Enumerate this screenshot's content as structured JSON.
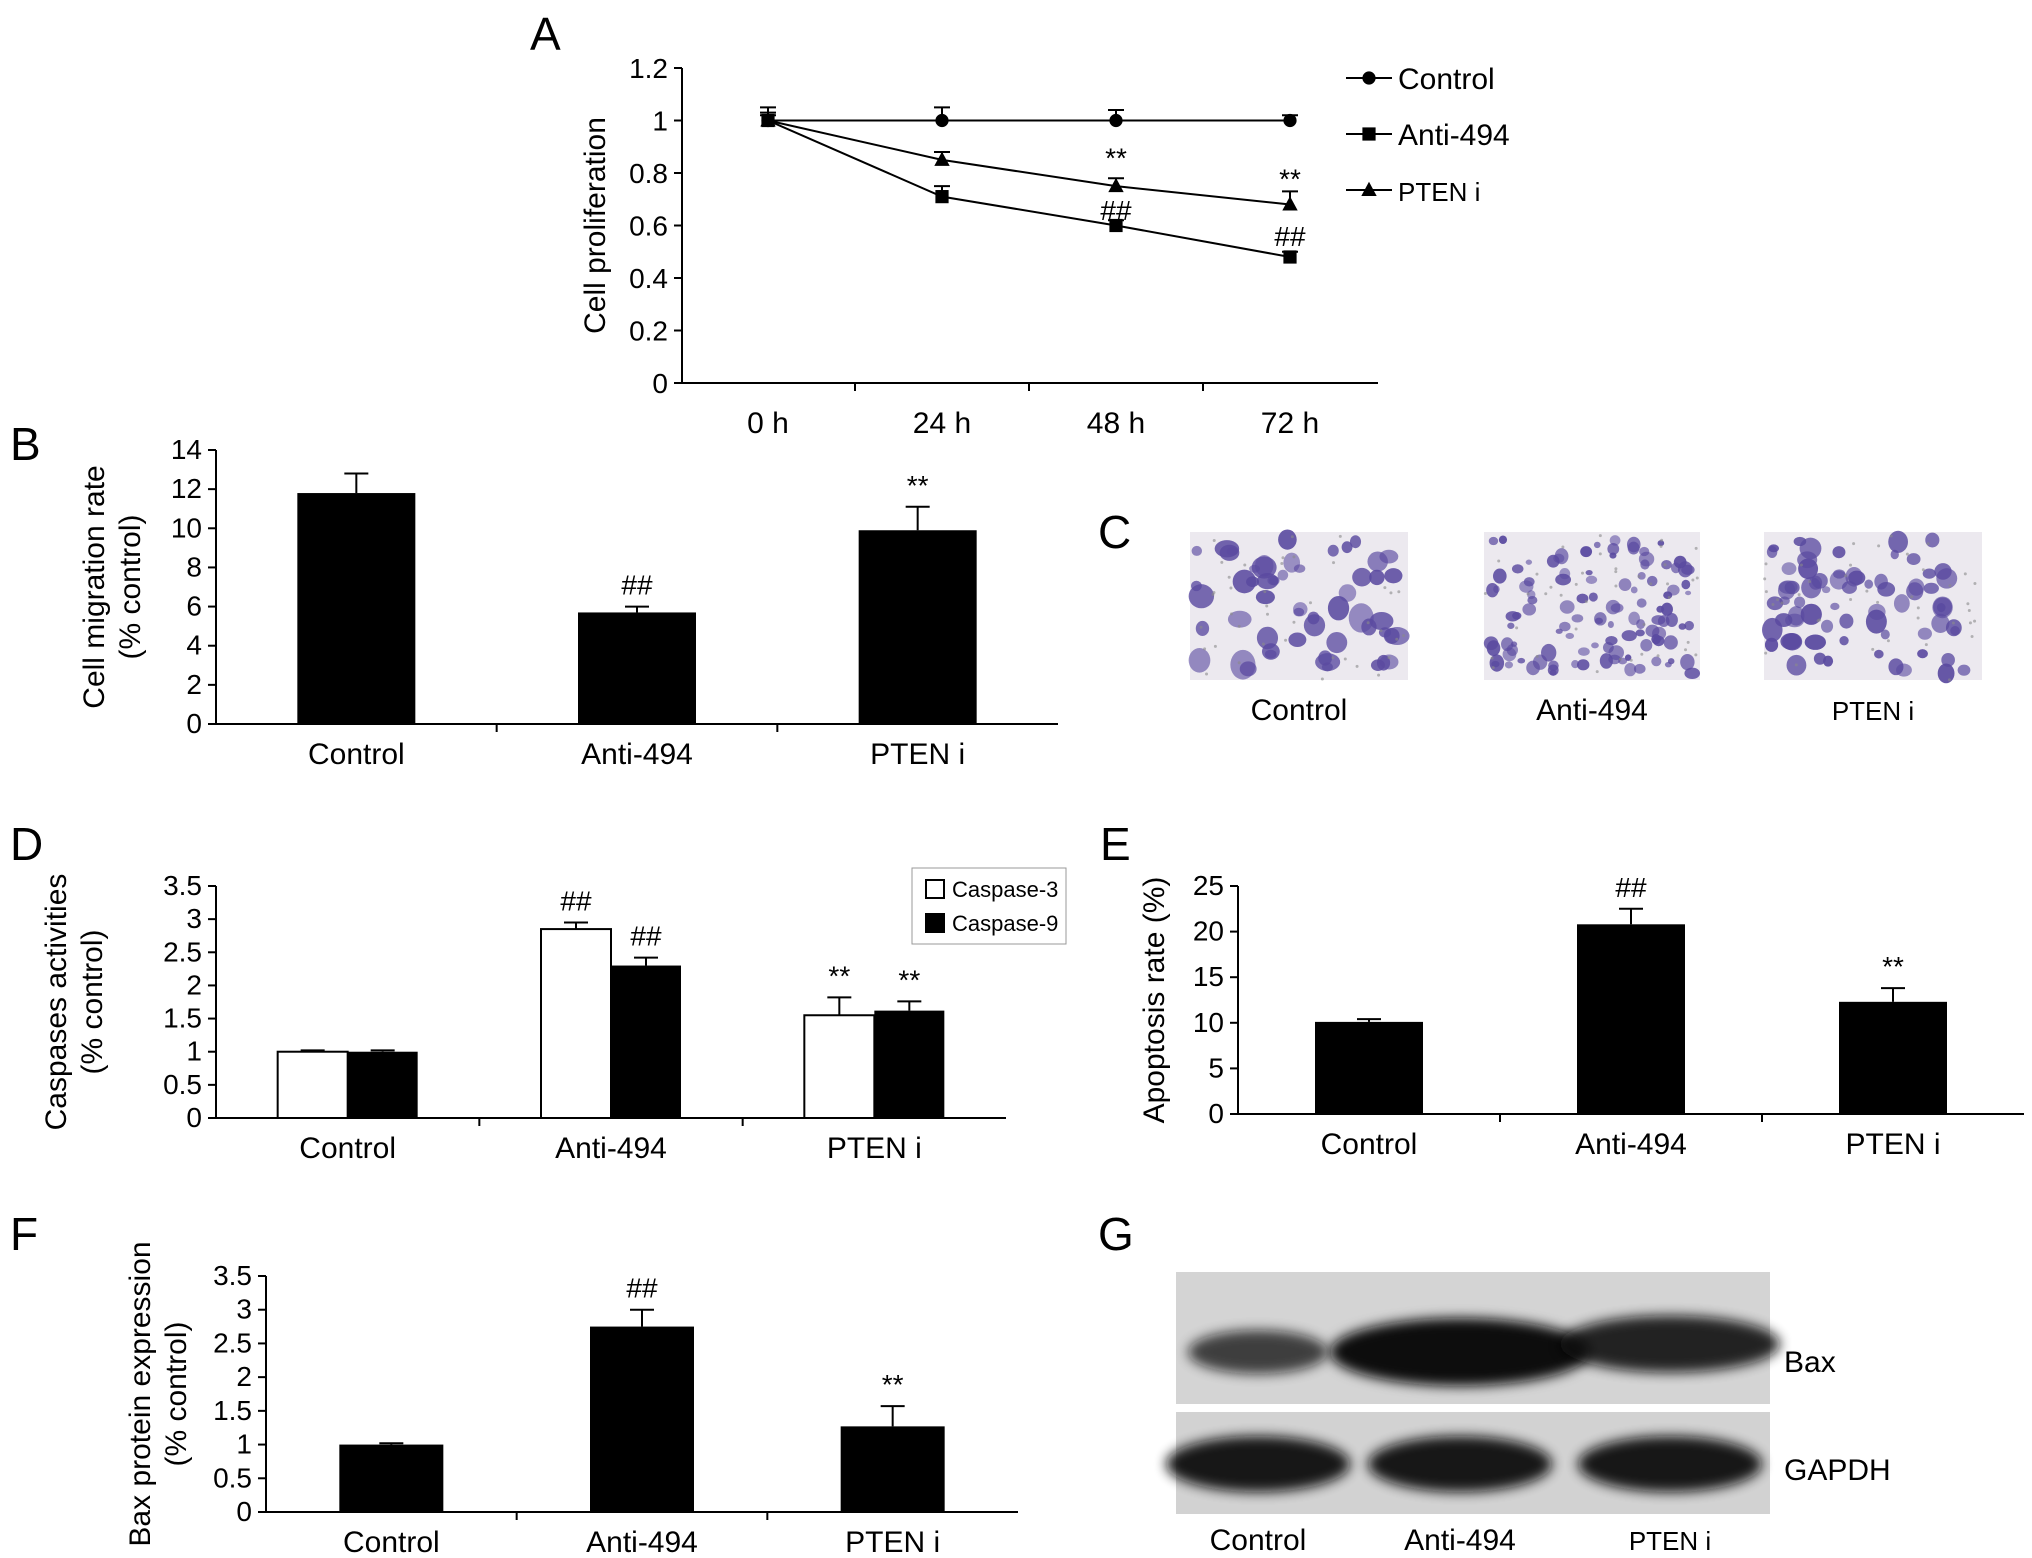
{
  "panel_letters": {
    "A": "A",
    "B": "B",
    "C": "C",
    "D": "D",
    "E": "E",
    "F": "F",
    "G": "G"
  },
  "chart_data": [
    {
      "panel": "A",
      "type": "line",
      "categories": [
        "0 h",
        "24 h",
        "48 h",
        "72 h"
      ],
      "ylabel": "Cell proliferation",
      "ylim": [
        0,
        1.2
      ],
      "yticks": [
        "0",
        "0.2",
        "0.4",
        "0.6",
        "0.8",
        "1",
        "1.2"
      ],
      "legend_position": "right",
      "series": [
        {
          "name": "Control",
          "marker": "circle",
          "values": [
            1.0,
            1.0,
            1.0,
            1.0
          ],
          "errors": [
            0.05,
            0.05,
            0.04,
            0.02
          ]
        },
        {
          "name": "Anti-494",
          "marker": "square",
          "values": [
            1.0,
            0.71,
            0.6,
            0.48
          ],
          "errors": [
            0.03,
            0.04,
            0.02,
            0.02
          ]
        },
        {
          "name": "PTEN i",
          "marker": "triangle",
          "values": [
            1.0,
            0.85,
            0.75,
            0.68
          ],
          "errors": [
            0.02,
            0.03,
            0.03,
            0.05
          ]
        }
      ],
      "annotations": [
        {
          "text": "**",
          "x": "48 h",
          "y": 0.86
        },
        {
          "text": "**",
          "x": "72 h",
          "y": 0.78
        },
        {
          "text": "##",
          "x": "48 h",
          "y": 0.66
        },
        {
          "text": "##",
          "x": "72 h",
          "y": 0.56
        }
      ]
    },
    {
      "panel": "B",
      "type": "bar",
      "categories": [
        "Control",
        "Anti-494",
        "PTEN i"
      ],
      "values": [
        11.8,
        5.7,
        9.9
      ],
      "errors": [
        1.0,
        0.3,
        1.2
      ],
      "sig": [
        "",
        "##",
        "**"
      ],
      "ylabel": [
        "Cell migration rate",
        "(% control)"
      ],
      "ylim": [
        0,
        14
      ],
      "yticks": [
        "0",
        "2",
        "4",
        "6",
        "8",
        "10",
        "12",
        "14"
      ]
    },
    {
      "panel": "D",
      "type": "bar",
      "categories": [
        "Control",
        "Anti-494",
        "PTEN i"
      ],
      "series": [
        {
          "name": "Caspase-3",
          "fill": "#ffffff",
          "values": [
            1.0,
            2.85,
            1.55
          ],
          "errors": [
            0.02,
            0.1,
            0.27
          ],
          "sig": [
            "",
            "##",
            "**"
          ]
        },
        {
          "name": "Caspase-9",
          "fill": "#000000",
          "values": [
            1.0,
            2.3,
            1.62
          ],
          "errors": [
            0.02,
            0.12,
            0.14
          ],
          "sig": [
            "",
            "##",
            "**"
          ]
        }
      ],
      "ylabel": [
        "Caspases activities",
        "(% control)"
      ],
      "ylim": [
        0,
        3.5
      ],
      "yticks": [
        "0",
        "0.5",
        "1",
        "1.5",
        "2",
        "2.5",
        "3",
        "3.5"
      ],
      "legend_position": "top-right"
    },
    {
      "panel": "E",
      "type": "bar",
      "categories": [
        "Control",
        "Anti-494",
        "PTEN i"
      ],
      "values": [
        10.1,
        20.8,
        12.3
      ],
      "errors": [
        0.3,
        1.7,
        1.5
      ],
      "sig": [
        "",
        "##",
        "**"
      ],
      "ylabel": [
        "Apoptosis rate (%)"
      ],
      "ylim": [
        0,
        25
      ],
      "yticks": [
        "0",
        "5",
        "10",
        "15",
        "20",
        "25"
      ]
    },
    {
      "panel": "F",
      "type": "bar",
      "categories": [
        "Control",
        "Anti-494",
        "PTEN i"
      ],
      "values": [
        1.0,
        2.75,
        1.27
      ],
      "errors": [
        0.02,
        0.25,
        0.3
      ],
      "sig": [
        "",
        "##",
        "**"
      ],
      "ylabel": [
        "Bax protein expression",
        "(% control)"
      ],
      "ylim": [
        0,
        3.5
      ],
      "yticks": [
        "0",
        "0.5",
        "1",
        "1.5",
        "2",
        "2.5",
        "3",
        "3.5"
      ]
    }
  ],
  "panel_c": {
    "labels": [
      "Control",
      "Anti-494",
      "PTEN i"
    ],
    "stain_color": "#5a4aa0"
  },
  "panel_g": {
    "lane_labels": [
      "Control",
      "Anti-494",
      "PTEN i"
    ],
    "band_labels": [
      "Bax",
      "GAPDH"
    ],
    "bax_intensity": [
      0.45,
      1.0,
      0.75
    ]
  }
}
